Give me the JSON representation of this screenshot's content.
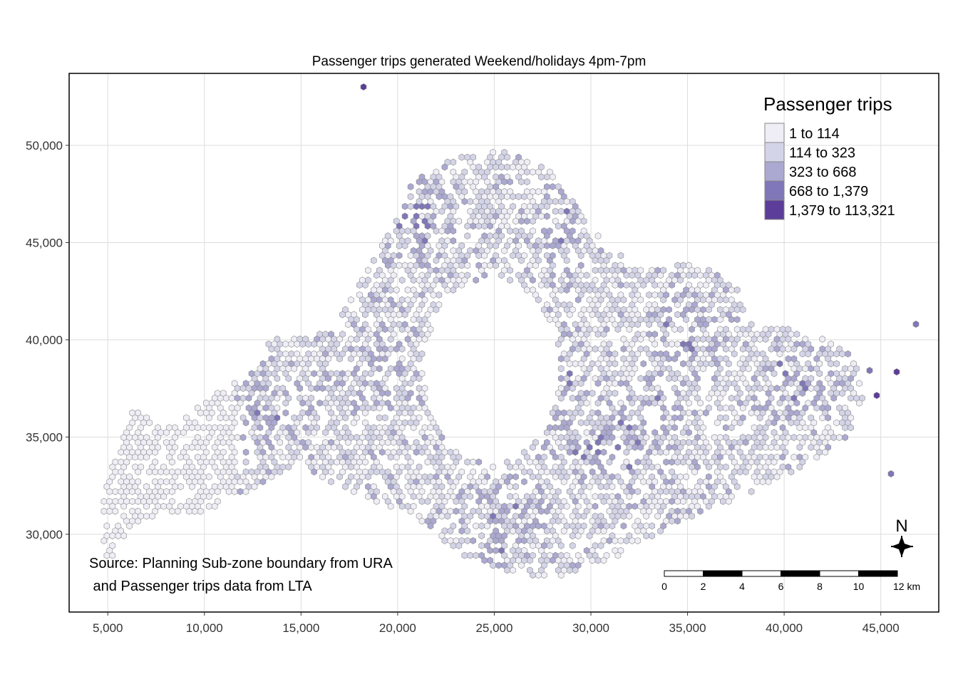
{
  "map": {
    "title": "Passenger trips generated Weekend/holidays 4pm-7pm",
    "x_ticks": [
      5000,
      10000,
      15000,
      20000,
      25000,
      30000,
      35000,
      40000,
      45000
    ],
    "x_tick_labels": [
      "5,000",
      "10,000",
      "15,000",
      "20,000",
      "25,000",
      "30,000",
      "35,000",
      "40,000",
      "45,000"
    ],
    "y_ticks": [
      30000,
      35000,
      40000,
      45000,
      50000
    ],
    "y_tick_labels": [
      "30,000",
      "35,000",
      "40,000",
      "45,000",
      "50,000"
    ],
    "x_range": [
      3000,
      48000
    ],
    "y_range": [
      26000,
      53700
    ],
    "grid": true,
    "hex_fill_layer": "hexagon-grid-choropleth"
  },
  "legend": {
    "title": "Passenger trips",
    "position": "top-right",
    "classes": [
      {
        "label": "1 to 114",
        "color": "#efedf5"
      },
      {
        "label": "114 to 323",
        "color": "#d4d4e8"
      },
      {
        "label": "323 to 668",
        "color": "#aba9d1"
      },
      {
        "label": "668 to 1,379",
        "color": "#7f77b8"
      },
      {
        "label": "1,379 to 113,321",
        "color": "#5c3d99"
      }
    ]
  },
  "source": {
    "line1": "Source: Planning Sub-zone boundary from URA",
    "line2": " and Passenger trips data from LTA"
  },
  "scale_bar": {
    "labels": [
      "0",
      "2",
      "4",
      "6",
      "8",
      "10",
      "12 km"
    ],
    "unit": "km"
  },
  "compass": {
    "label": "N",
    "icon": "north-arrow-icon"
  }
}
